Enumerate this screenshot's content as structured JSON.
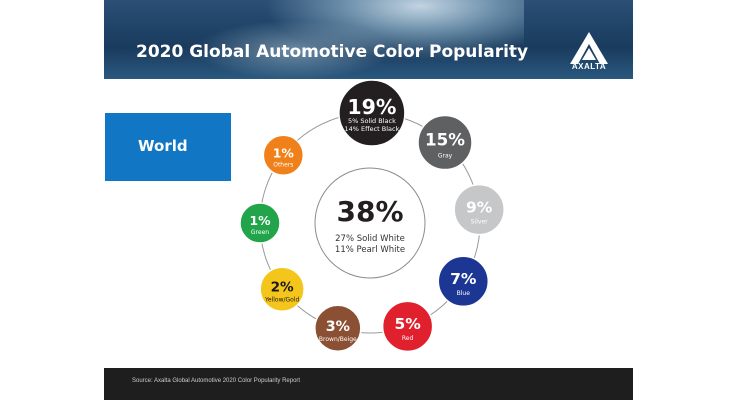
{
  "header": {
    "title": "2020 Global Automotive Color Popularity",
    "logo_text": "AXALTA"
  },
  "region": {
    "label": "World"
  },
  "chart_data": {
    "type": "pie",
    "region": "World",
    "center": {
      "value": "38%",
      "percent": 38,
      "label": "White",
      "lines": [
        "27% Solid White",
        "11% Pearl White"
      ]
    },
    "slices": [
      {
        "label": "Black",
        "value": "19%",
        "percent": 19,
        "lines": [
          "5% Solid Black",
          "14% Effect Black"
        ],
        "color": "#231f20",
        "text_color": "#ffffff"
      },
      {
        "label": "Gray",
        "value": "15%",
        "percent": 15,
        "lines": [
          "Gray"
        ],
        "color": "#5f6062",
        "text_color": "#ffffff"
      },
      {
        "label": "Silver",
        "value": "9%",
        "percent": 9,
        "lines": [
          "Silver"
        ],
        "color": "#c6c7c8",
        "text_color": "#ffffff"
      },
      {
        "label": "Blue",
        "value": "7%",
        "percent": 7,
        "lines": [
          "Blue"
        ],
        "color": "#1c3694",
        "text_color": "#ffffff"
      },
      {
        "label": "Red",
        "value": "5%",
        "percent": 5,
        "lines": [
          "Red"
        ],
        "color": "#e0202c",
        "text_color": "#ffffff"
      },
      {
        "label": "Brown/Beige",
        "value": "3%",
        "percent": 3,
        "lines": [
          "Brown/Beige"
        ],
        "color": "#8b4f34",
        "text_color": "#ffffff"
      },
      {
        "label": "Yellow/Gold",
        "value": "2%",
        "percent": 2,
        "lines": [
          "Yellow/Gold"
        ],
        "color": "#f4c51a",
        "text_color": "#1a1a1a"
      },
      {
        "label": "Green",
        "value": "1%",
        "percent": 1,
        "lines": [
          "Green"
        ],
        "color": "#22a44a",
        "text_color": "#ffffff"
      },
      {
        "label": "Others",
        "value": "1%",
        "percent": 1,
        "lines": [
          "Others"
        ],
        "color": "#f08019",
        "text_color": "#ffffff"
      }
    ]
  },
  "footer": {
    "source": "Source: Axalta Global Automotive 2020 Color Popularity Report"
  }
}
